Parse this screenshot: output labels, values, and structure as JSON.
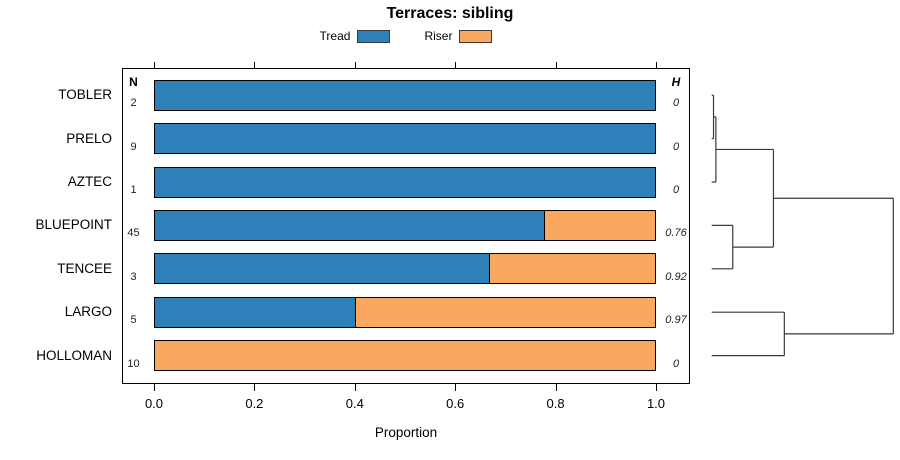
{
  "title": "Terraces: sibling",
  "legend": [
    {
      "label": "Tread",
      "color": "#2e80b8"
    },
    {
      "label": "Riser",
      "color": "#faa85f"
    }
  ],
  "columns": {
    "n_header": "N",
    "h_header": "H"
  },
  "colors": {
    "tread": "#2e80b8",
    "riser": "#faa85f",
    "bar_border": "#000000",
    "box_border": "#000000",
    "dendrogram_line": "#3a3a3a"
  },
  "chart_data": {
    "type": "bar",
    "stacked": true,
    "orientation": "horizontal",
    "title": "Terraces: sibling",
    "xlabel": "Proportion",
    "xlim": [
      0,
      1
    ],
    "categories": [
      "TOBLER",
      "PRELO",
      "AZTEC",
      "BLUEPOINT",
      "TENCEE",
      "LARGO",
      "HOLLOMAN"
    ],
    "series": [
      {
        "name": "Tread",
        "color": "#2e80b8",
        "values": [
          1,
          1,
          1,
          0.778,
          0.667,
          0.4,
          0
        ]
      },
      {
        "name": "Riser",
        "color": "#faa85f",
        "values": [
          0,
          0,
          0,
          0.222,
          0.333,
          0.6,
          1
        ]
      }
    ],
    "n_values": [
      "2",
      "9",
      "1",
      "45",
      "3",
      "5",
      "10"
    ],
    "h_values": [
      "0",
      "0",
      "0",
      "0.76",
      "0.92",
      "0.97",
      "0"
    ],
    "x_ticks": [
      {
        "label": "0.0",
        "value": 0.0
      },
      {
        "label": "0.2",
        "value": 0.2
      },
      {
        "label": "0.4",
        "value": 0.4
      },
      {
        "label": "0.6",
        "value": 0.6
      },
      {
        "label": "0.8",
        "value": 0.8
      },
      {
        "label": "1.0",
        "value": 1.0
      }
    ],
    "legend_position": "top",
    "grid": false
  },
  "dendrogram": {
    "height": 1.0,
    "children": [
      {
        "height": 0.34,
        "children": [
          {
            "height": 0.023,
            "children": [
              {
                "height": 0.01,
                "children": [
                  {
                    "leaf": "TOBLER"
                  },
                  {
                    "leaf": "PRELO"
                  }
                ]
              },
              {
                "leaf": "AZTEC"
              }
            ]
          },
          {
            "height": 0.116,
            "children": [
              {
                "leaf": "BLUEPOINT"
              },
              {
                "leaf": "TENCEE"
              }
            ]
          }
        ]
      },
      {
        "height": 0.4,
        "children": [
          {
            "leaf": "LARGO"
          },
          {
            "leaf": "HOLLOMAN"
          }
        ]
      }
    ]
  }
}
